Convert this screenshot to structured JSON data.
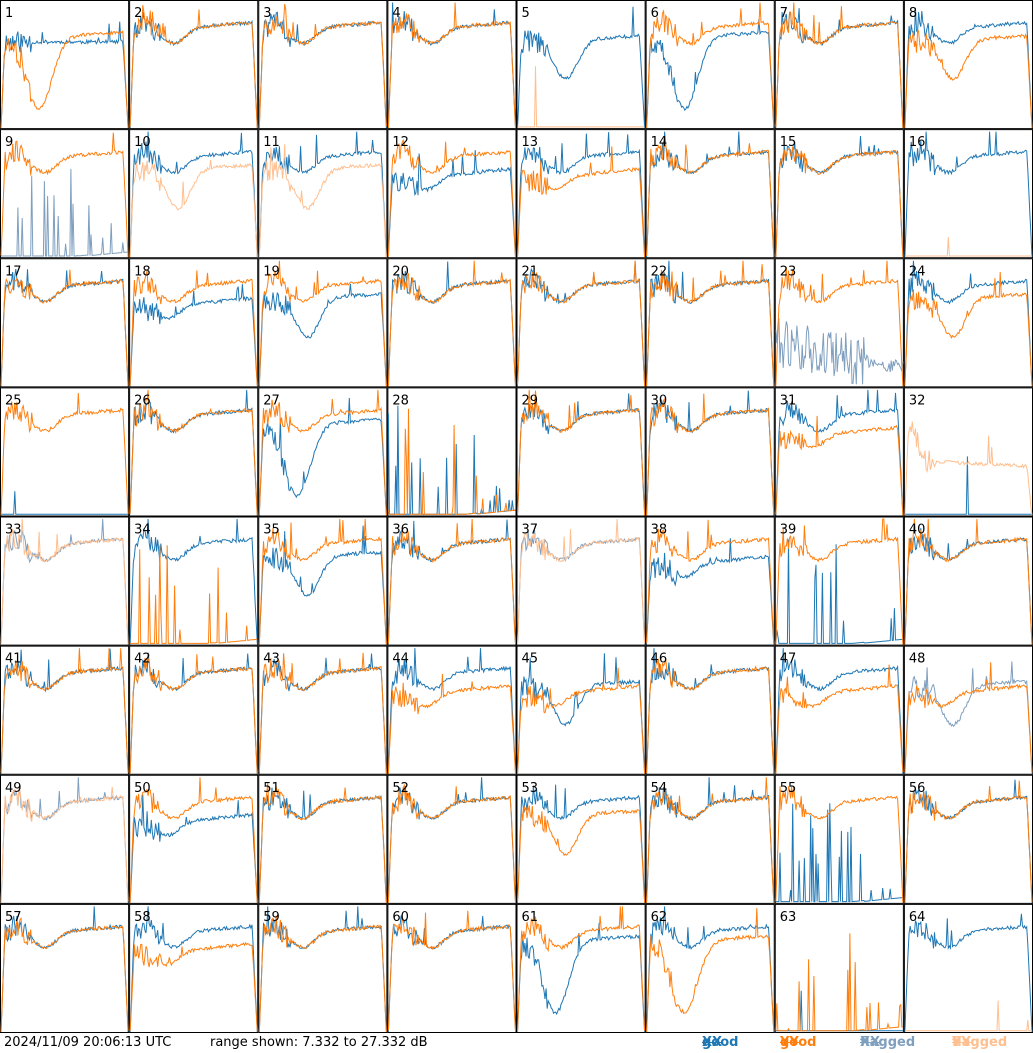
{
  "footer": {
    "timestamp": "2024/11/09 20:06:13 UTC",
    "range_text": "range shown: 7.332 to 27.332 dB"
  },
  "legend": [
    {
      "word": "good",
      "pol": "XX",
      "color": "#1f77b4"
    },
    {
      "word": "good",
      "pol": "YY",
      "color": "#ff7f0e"
    },
    {
      "word": "flagged",
      "pol": "XX",
      "color": "#7f9fbf"
    },
    {
      "word": "flagged",
      "pol": "YY",
      "color": "#ffbf8f"
    }
  ],
  "chart_data": {
    "type": "line",
    "layout": "small-multiples 8x8",
    "y_range_db": [
      7.332,
      27.332
    ],
    "y_unit": "dB",
    "x_ticks": false,
    "grid": false,
    "legend_position": "bottom-right",
    "shapes_note": "per-panel spectra approximated by shape class",
    "panels": [
      {
        "id": "1",
        "xx": "good",
        "yy": "good",
        "xx_shape": "spike",
        "yy_shape": "deep"
      },
      {
        "id": "2",
        "xx": "good",
        "yy": "good",
        "xx_shape": "normal",
        "yy_shape": "normal"
      },
      {
        "id": "3",
        "xx": "good",
        "yy": "good",
        "xx_shape": "normal",
        "yy_shape": "normal"
      },
      {
        "id": "4",
        "xx": "good",
        "yy": "good",
        "xx_shape": "normal",
        "yy_shape": "normal"
      },
      {
        "id": "5",
        "xx": "good",
        "yy": "flagged",
        "xx_shape": "dip",
        "yy_shape": "flat_bottom"
      },
      {
        "id": "6",
        "xx": "good",
        "yy": "good",
        "xx_shape": "deep",
        "yy_shape": "normal"
      },
      {
        "id": "7",
        "xx": "good",
        "yy": "good",
        "xx_shape": "normal",
        "yy_shape": "normal"
      },
      {
        "id": "8",
        "xx": "good",
        "yy": "good",
        "xx_shape": "normal",
        "yy_shape": "dip"
      },
      {
        "id": "9",
        "xx": "flagged",
        "yy": "good",
        "xx_shape": "spiky_bottom",
        "yy_shape": "normal"
      },
      {
        "id": "10",
        "xx": "good",
        "yy": "flagged",
        "xx_shape": "normal",
        "yy_shape": "dip"
      },
      {
        "id": "11",
        "xx": "good",
        "yy": "flagged",
        "xx_shape": "normal",
        "yy_shape": "dip"
      },
      {
        "id": "12",
        "xx": "good",
        "yy": "good",
        "xx_shape": "low",
        "yy_shape": "normal"
      },
      {
        "id": "13",
        "xx": "good",
        "yy": "good",
        "xx_shape": "normal",
        "yy_shape": "low"
      },
      {
        "id": "14",
        "xx": "good",
        "yy": "good",
        "xx_shape": "normal",
        "yy_shape": "normal"
      },
      {
        "id": "15",
        "xx": "good",
        "yy": "good",
        "xx_shape": "normal",
        "yy_shape": "normal"
      },
      {
        "id": "16",
        "xx": "good",
        "yy": "flagged",
        "xx_shape": "normal",
        "yy_shape": "flat_bottom"
      },
      {
        "id": "17",
        "xx": "good",
        "yy": "good",
        "xx_shape": "normal",
        "yy_shape": "normal"
      },
      {
        "id": "18",
        "xx": "good",
        "yy": "good",
        "xx_shape": "low",
        "yy_shape": "normal"
      },
      {
        "id": "19",
        "xx": "good",
        "yy": "good",
        "xx_shape": "dip",
        "yy_shape": "normal"
      },
      {
        "id": "20",
        "xx": "good",
        "yy": "good",
        "xx_shape": "normal",
        "yy_shape": "normal"
      },
      {
        "id": "21",
        "xx": "good",
        "yy": "good",
        "xx_shape": "normal",
        "yy_shape": "normal"
      },
      {
        "id": "22",
        "xx": "good",
        "yy": "good",
        "xx_shape": "normal",
        "yy_shape": "normal"
      },
      {
        "id": "23",
        "xx": "flagged",
        "yy": "good",
        "xx_shape": "noisy_low",
        "yy_shape": "normal"
      },
      {
        "id": "24",
        "xx": "good",
        "yy": "good",
        "xx_shape": "normal",
        "yy_shape": "dip"
      },
      {
        "id": "25",
        "xx": "good",
        "yy": "good",
        "xx_shape": "flat_bottom",
        "yy_shape": "normal"
      },
      {
        "id": "26",
        "xx": "good",
        "yy": "good",
        "xx_shape": "normal",
        "yy_shape": "normal"
      },
      {
        "id": "27",
        "xx": "good",
        "yy": "good",
        "xx_shape": "deep",
        "yy_shape": "normal"
      },
      {
        "id": "28",
        "xx": "good",
        "yy": "good",
        "xx_shape": "spiky_bottom",
        "yy_shape": "spiky_bottom"
      },
      {
        "id": "29",
        "xx": "good",
        "yy": "good",
        "xx_shape": "normal",
        "yy_shape": "normal"
      },
      {
        "id": "30",
        "xx": "good",
        "yy": "good",
        "xx_shape": "normal",
        "yy_shape": "normal"
      },
      {
        "id": "31",
        "xx": "good",
        "yy": "good",
        "xx_shape": "normal",
        "yy_shape": "low"
      },
      {
        "id": "32",
        "xx": "good",
        "yy": "flagged",
        "xx_shape": "flat_bottom",
        "yy_shape": "spiky_mid"
      },
      {
        "id": "33",
        "xx": "flagged",
        "yy": "flagged",
        "xx_shape": "normal",
        "yy_shape": "normal"
      },
      {
        "id": "34",
        "xx": "good",
        "yy": "good",
        "xx_shape": "normal",
        "yy_shape": "spiky_bottom"
      },
      {
        "id": "35",
        "xx": "good",
        "yy": "good",
        "xx_shape": "dip",
        "yy_shape": "normal"
      },
      {
        "id": "36",
        "xx": "good",
        "yy": "good",
        "xx_shape": "normal",
        "yy_shape": "normal"
      },
      {
        "id": "37",
        "xx": "flagged",
        "yy": "flagged",
        "xx_shape": "normal",
        "yy_shape": "normal"
      },
      {
        "id": "38",
        "xx": "good",
        "yy": "good",
        "xx_shape": "low",
        "yy_shape": "normal"
      },
      {
        "id": "39",
        "xx": "good",
        "yy": "good",
        "xx_shape": "spiky_bottom",
        "yy_shape": "normal"
      },
      {
        "id": "40",
        "xx": "good",
        "yy": "good",
        "xx_shape": "normal",
        "yy_shape": "normal"
      },
      {
        "id": "41",
        "xx": "good",
        "yy": "good",
        "xx_shape": "normal",
        "yy_shape": "normal"
      },
      {
        "id": "42",
        "xx": "good",
        "yy": "good",
        "xx_shape": "normal",
        "yy_shape": "normal"
      },
      {
        "id": "43",
        "xx": "good",
        "yy": "good",
        "xx_shape": "normal",
        "yy_shape": "normal"
      },
      {
        "id": "44",
        "xx": "good",
        "yy": "good",
        "xx_shape": "normal",
        "yy_shape": "low"
      },
      {
        "id": "45",
        "xx": "good",
        "yy": "good",
        "xx_shape": "dip",
        "yy_shape": "low"
      },
      {
        "id": "46",
        "xx": "good",
        "yy": "good",
        "xx_shape": "normal",
        "yy_shape": "normal"
      },
      {
        "id": "47",
        "xx": "good",
        "yy": "good",
        "xx_shape": "normal",
        "yy_shape": "low"
      },
      {
        "id": "48",
        "xx": "flagged",
        "yy": "good",
        "xx_shape": "dip",
        "yy_shape": "low"
      },
      {
        "id": "49",
        "xx": "flagged",
        "yy": "flagged",
        "xx_shape": "normal",
        "yy_shape": "normal"
      },
      {
        "id": "50",
        "xx": "good",
        "yy": "good",
        "xx_shape": "low",
        "yy_shape": "normal"
      },
      {
        "id": "51",
        "xx": "good",
        "yy": "good",
        "xx_shape": "normal",
        "yy_shape": "normal"
      },
      {
        "id": "52",
        "xx": "good",
        "yy": "good",
        "xx_shape": "normal",
        "yy_shape": "normal"
      },
      {
        "id": "53",
        "xx": "good",
        "yy": "good",
        "xx_shape": "normal",
        "yy_shape": "dip"
      },
      {
        "id": "54",
        "xx": "good",
        "yy": "good",
        "xx_shape": "normal",
        "yy_shape": "normal"
      },
      {
        "id": "55",
        "xx": "good",
        "yy": "good",
        "xx_shape": "spiky_bottom",
        "yy_shape": "normal"
      },
      {
        "id": "56",
        "xx": "good",
        "yy": "good",
        "xx_shape": "normal",
        "yy_shape": "normal"
      },
      {
        "id": "57",
        "xx": "good",
        "yy": "good",
        "xx_shape": "normal",
        "yy_shape": "normal"
      },
      {
        "id": "58",
        "xx": "good",
        "yy": "good",
        "xx_shape": "normal",
        "yy_shape": "low"
      },
      {
        "id": "59",
        "xx": "good",
        "yy": "good",
        "xx_shape": "normal",
        "yy_shape": "normal"
      },
      {
        "id": "60",
        "xx": "good",
        "yy": "good",
        "xx_shape": "normal",
        "yy_shape": "normal"
      },
      {
        "id": "61",
        "xx": "good",
        "yy": "good",
        "xx_shape": "deep",
        "yy_shape": "normal"
      },
      {
        "id": "62",
        "xx": "good",
        "yy": "good",
        "xx_shape": "normal",
        "yy_shape": "deep"
      },
      {
        "id": "63",
        "xx": "good",
        "yy": "good",
        "xx_shape": "flat_bottom",
        "yy_shape": "spiky_bottom"
      },
      {
        "id": "64",
        "xx": "good",
        "yy": "flagged",
        "xx_shape": "normal",
        "yy_shape": "flat_bottom"
      }
    ]
  }
}
